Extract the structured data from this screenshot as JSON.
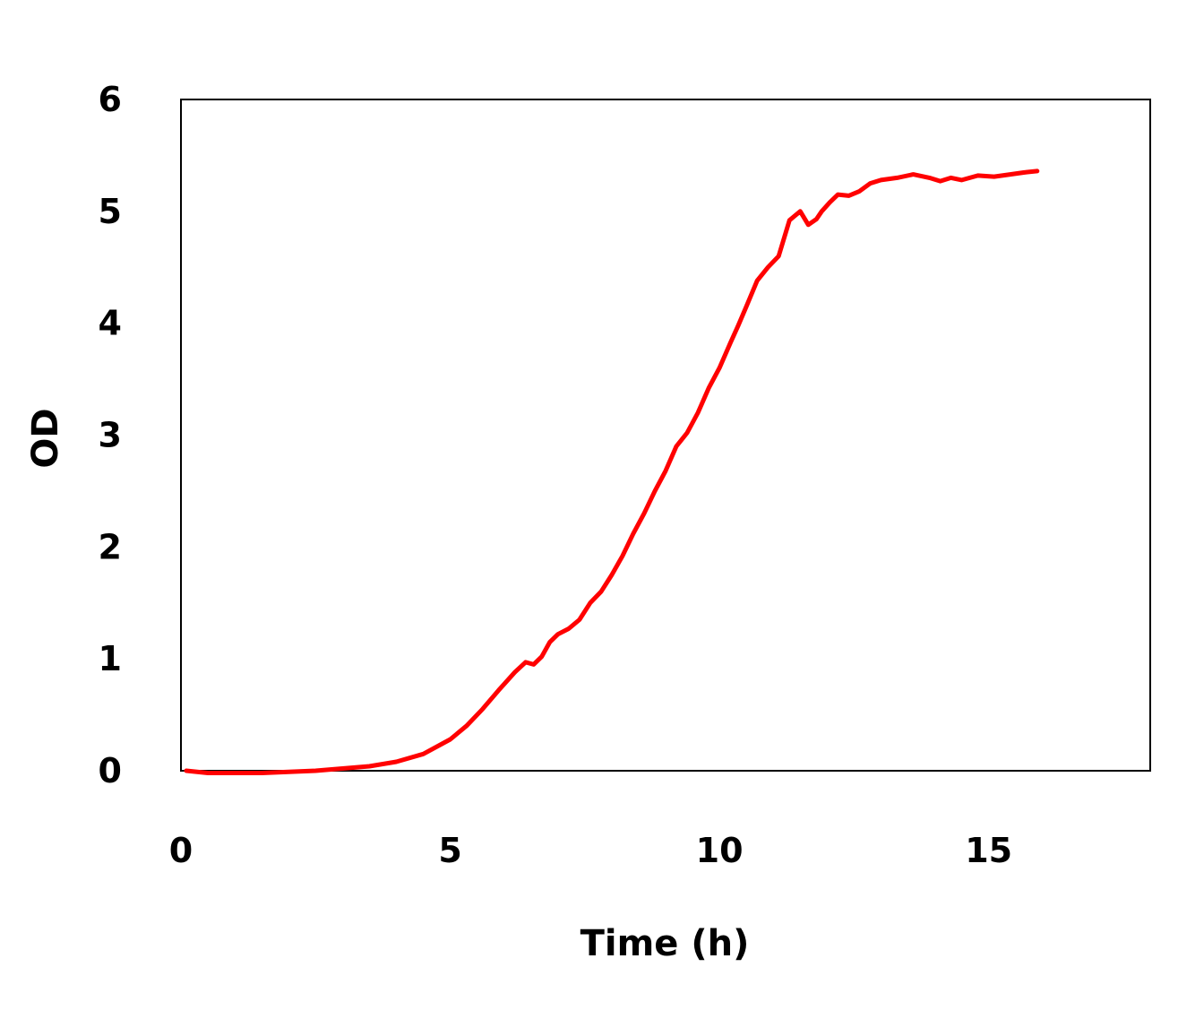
{
  "chart_data": {
    "type": "line",
    "title": "",
    "xlabel": "Time (h)",
    "ylabel": "OD",
    "xlim": [
      0,
      18
    ],
    "ylim": [
      0,
      6
    ],
    "xticks": [
      0,
      5,
      10,
      15
    ],
    "yticks": [
      0,
      1,
      2,
      3,
      4,
      5,
      6
    ],
    "grid": false,
    "legend": "none",
    "series": [
      {
        "color": "#ff0000",
        "x": [
          0.1,
          0.5,
          1.0,
          1.5,
          2.0,
          2.5,
          3.0,
          3.5,
          4.0,
          4.5,
          5.0,
          5.3,
          5.6,
          5.9,
          6.2,
          6.4,
          6.55,
          6.7,
          6.85,
          7.0,
          7.2,
          7.4,
          7.6,
          7.8,
          8.0,
          8.2,
          8.4,
          8.6,
          8.8,
          9.0,
          9.2,
          9.4,
          9.6,
          9.8,
          10.0,
          10.2,
          10.35,
          10.5,
          10.7,
          10.9,
          11.1,
          11.3,
          11.5,
          11.65,
          11.8,
          11.9,
          12.05,
          12.2,
          12.4,
          12.6,
          12.8,
          13.0,
          13.3,
          13.6,
          13.9,
          14.1,
          14.3,
          14.5,
          14.8,
          15.1,
          15.4,
          15.7,
          15.9
        ],
        "y": [
          0.0,
          -0.02,
          -0.02,
          -0.02,
          -0.01,
          0.0,
          0.02,
          0.04,
          0.08,
          0.15,
          0.28,
          0.4,
          0.55,
          0.72,
          0.88,
          0.97,
          0.95,
          1.02,
          1.15,
          1.22,
          1.27,
          1.35,
          1.5,
          1.6,
          1.75,
          1.92,
          2.12,
          2.3,
          2.5,
          2.68,
          2.9,
          3.02,
          3.2,
          3.42,
          3.6,
          3.82,
          3.98,
          4.15,
          4.38,
          4.5,
          4.6,
          4.92,
          5.0,
          4.88,
          4.93,
          5.0,
          5.08,
          5.15,
          5.14,
          5.18,
          5.25,
          5.28,
          5.3,
          5.33,
          5.3,
          5.27,
          5.3,
          5.28,
          5.32,
          5.31,
          5.33,
          5.35,
          5.36
        ]
      }
    ]
  }
}
